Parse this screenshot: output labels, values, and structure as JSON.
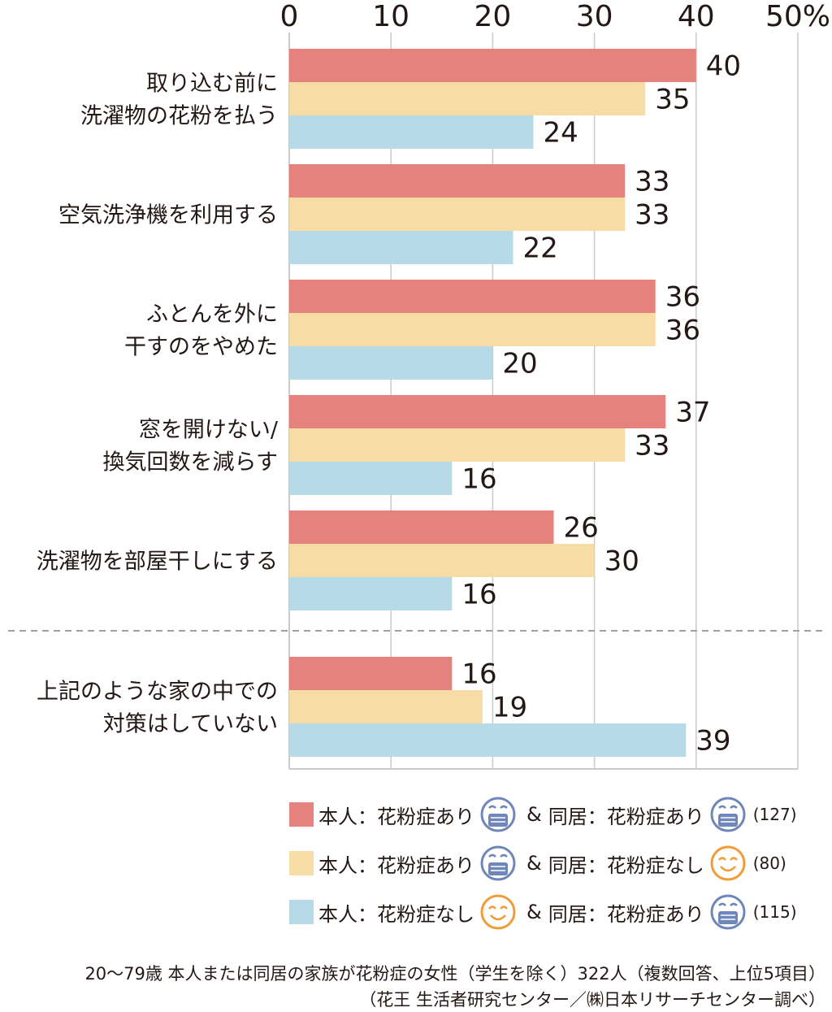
{
  "chart_data": {
    "type": "bar",
    "orientation": "horizontal",
    "axis_ticks": [
      "0",
      "10",
      "20",
      "30",
      "40",
      "50%"
    ],
    "xlim": [
      0,
      50
    ],
    "grid": true,
    "categories": [
      "取り込む前に\n洗濯物の花粉を払う",
      "空気洗浄機を利用する",
      "ふとんを外に\n干すのをやめた",
      "窓を開けない/\n換気回数を減らす",
      "洗濯物を部屋干しにする",
      "上記のような家の中での\n対策はしていない"
    ],
    "series": [
      {
        "name": "本人：花粉症あり & 同居：花粉症あり",
        "color": "#e5827d",
        "values": [
          40,
          33,
          36,
          37,
          26,
          16
        ]
      },
      {
        "name": "本人：花粉症あり & 同居：花粉症なし",
        "color": "#f7dca6",
        "values": [
          35,
          33,
          36,
          33,
          30,
          19
        ]
      },
      {
        "name": "本人：花粉症なし & 同居：花粉症あり",
        "color": "#b7dae8",
        "values": [
          24,
          22,
          20,
          16,
          16,
          39
        ]
      }
    ]
  },
  "legend": [
    {
      "color": "#e5827d",
      "self_label": "本人：花粉症あり",
      "self_icon": "mask-face-icon",
      "amp": "&",
      "cohab_label": "同居：花粉症あり",
      "cohab_icon": "mask-face-icon",
      "n": "(127)"
    },
    {
      "color": "#f7dca6",
      "self_label": "本人：花粉症あり",
      "self_icon": "mask-face-icon",
      "amp": "&",
      "cohab_label": "同居：花粉症なし",
      "cohab_icon": "smile-face-icon",
      "n": "(80)"
    },
    {
      "color": "#b7dae8",
      "self_label": "本人：花粉症なし",
      "self_icon": "smile-face-icon",
      "amp": "&",
      "cohab_label": "同居：花粉症あり",
      "cohab_icon": "mask-face-icon",
      "n": "(115)"
    }
  ],
  "footnote": {
    "line1": "20～79歳 本人または同居の家族が花粉症の女性（学生を除く）322人（複数回答、上位5項目）",
    "line2": "（花王 生活者研究センター／㈱日本リサーチセンター調べ）"
  },
  "colors": {
    "text": "#231815",
    "grid": "#c9caca",
    "separator": "#9fa0a0",
    "mask_icon": "#6f86b8",
    "smile_icon": "#f29c38"
  }
}
